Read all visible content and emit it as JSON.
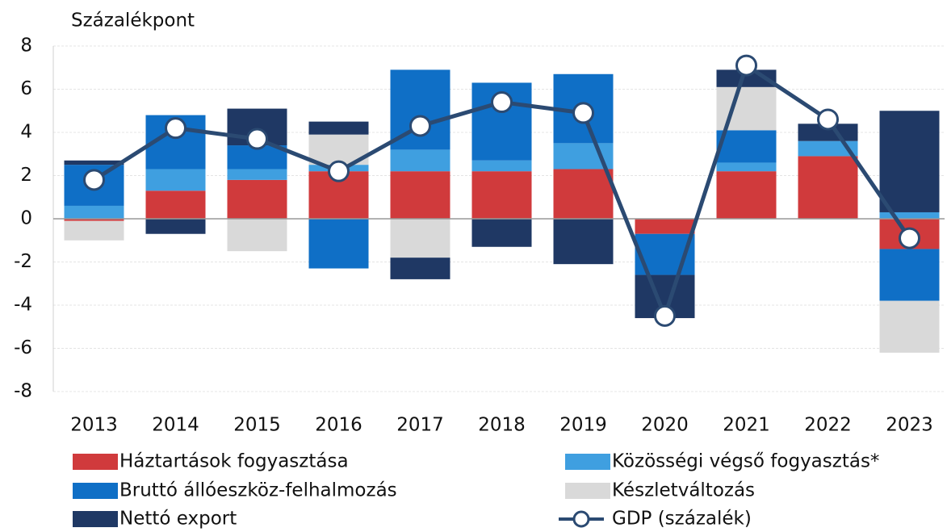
{
  "chart_data": {
    "type": "bar",
    "stacked": true,
    "ylabel": "Százalékpont",
    "categories": [
      "2013",
      "2014",
      "2015",
      "2016",
      "2017",
      "2018",
      "2019",
      "2020",
      "2021",
      "2022",
      "2023"
    ],
    "series": [
      {
        "name": "Háztartások fogyasztása",
        "color": "#d03a3c",
        "values": [
          -0.1,
          1.3,
          1.8,
          2.2,
          2.2,
          2.2,
          2.3,
          -0.7,
          2.2,
          2.9,
          -1.4
        ]
      },
      {
        "name": "Közösségi végső fogyasztás*",
        "color": "#3f9fe0",
        "values": [
          0.6,
          1.0,
          0.5,
          0.3,
          1.0,
          0.5,
          1.2,
          0,
          0.4,
          0.7,
          0.3
        ]
      },
      {
        "name": "Bruttó állóeszköz-felhalmozás",
        "color": "#0f6fc6",
        "values": [
          1.9,
          2.5,
          1.1,
          -2.3,
          3.7,
          3.6,
          3.2,
          -1.9,
          1.5,
          0,
          -2.4
        ]
      },
      {
        "name": "Készletváltozás",
        "color": "#d9d9d9",
        "values": [
          -0.9,
          0,
          -1.5,
          1.4,
          -1.8,
          0,
          0,
          0,
          2.0,
          0,
          -2.4
        ]
      },
      {
        "name": "Nettó export",
        "color": "#1f3864",
        "values": [
          0.2,
          -0.7,
          1.7,
          0.6,
          -1.0,
          -1.3,
          -2.1,
          -2.0,
          0.8,
          0.8,
          4.7
        ]
      },
      {
        "name": "GDP (százalék)",
        "color": "#2b4a72",
        "type": "line",
        "values": [
          1.8,
          4.2,
          3.7,
          2.2,
          4.3,
          5.4,
          4.9,
          -4.5,
          7.1,
          4.6,
          -0.9
        ]
      }
    ],
    "ylim": [
      -8,
      8
    ],
    "yticks": [
      8,
      6,
      4,
      2,
      0,
      -2,
      -4,
      -6,
      -8
    ],
    "grid": true
  }
}
